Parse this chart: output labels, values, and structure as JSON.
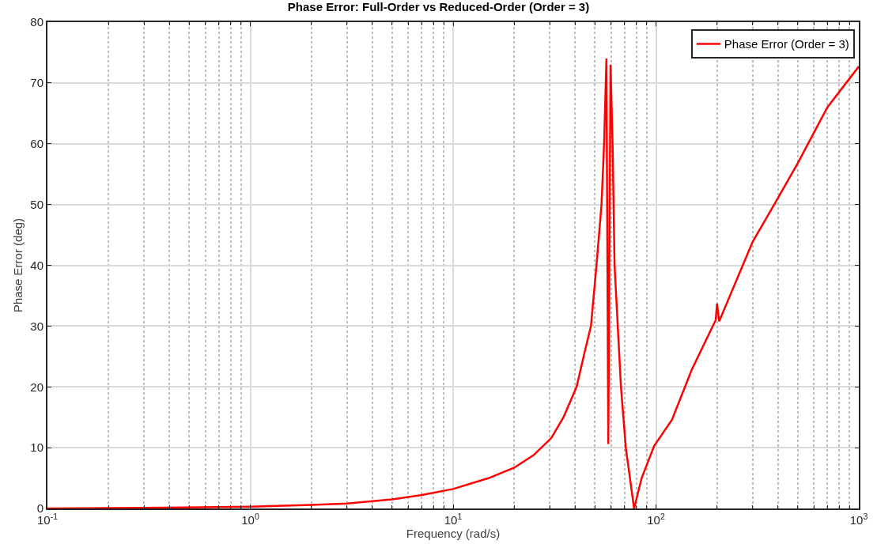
{
  "chart_data": {
    "type": "line",
    "title": "Phase Error: Full-Order vs Reduced-Order (Order = 3)",
    "xlabel": "Frequency (rad/s)",
    "ylabel": "Phase Error (deg)",
    "log": "x",
    "grid": true,
    "legend": "top right",
    "line_style": "solid",
    "marker": "none",
    "xlim": [
      0.1,
      1000
    ],
    "xticks": [
      {
        "value": 0.1,
        "label": "10$^{-1}$"
      },
      {
        "value": 1,
        "label": "10$^{0}$"
      },
      {
        "value": 10,
        "label": "10$^{1}$"
      },
      {
        "value": 100,
        "label": "10$^{2}$"
      },
      {
        "value": 1000,
        "label": "10$^{3}$"
      }
    ],
    "ylim": [
      0,
      80
    ],
    "yticks": [
      0,
      10,
      20,
      30,
      40,
      50,
      60,
      70,
      80
    ],
    "series": [
      {
        "name": "Phase Error (Order = 3)",
        "color": "#ff0000",
        "x": [
          0.1,
          0.3,
          1,
          2,
          3,
          5,
          7,
          10,
          15,
          20,
          25,
          30.5,
          35,
          40.6,
          44,
          47.8,
          50.9,
          53.9,
          55.5,
          57.0,
          58.2,
          59.7,
          61.1,
          62.5,
          67.2,
          71.0,
          78,
          85,
          98,
          120,
          150,
          197,
          200,
          205,
          300,
          400,
          500,
          700,
          1000
        ],
        "values": [
          0,
          0.1,
          0.3,
          0.6,
          0.8,
          1.5,
          2.2,
          3.2,
          5.0,
          6.7,
          8.8,
          11.6,
          15.0,
          20,
          25,
          30,
          40,
          50,
          60,
          74,
          10.6,
          73,
          60,
          40,
          20,
          10,
          0,
          5,
          10.3,
          14.6,
          22.8,
          31.0,
          33.7,
          30.8,
          43.9,
          51.1,
          56.8,
          66,
          72.7
        ]
      }
    ]
  }
}
